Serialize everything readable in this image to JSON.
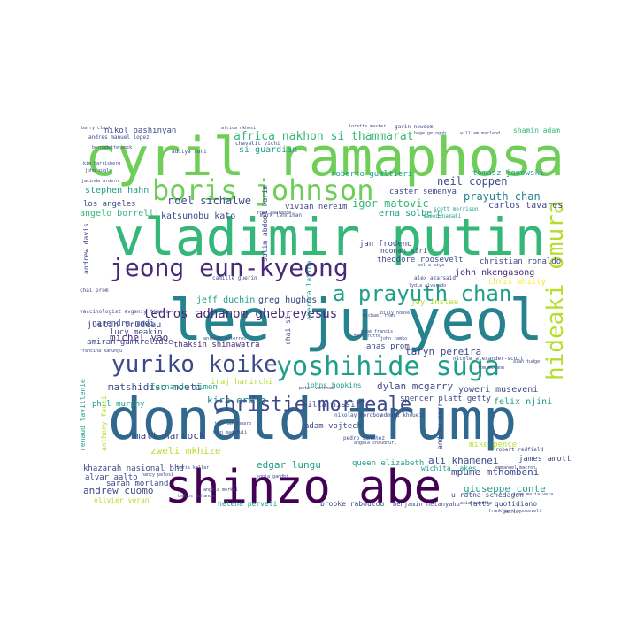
{
  "palette": {
    "dark_purple": "#440154",
    "purple": "#482878",
    "indigo": "#3e4989",
    "blue": "#31688e",
    "teal_blue": "#26828e",
    "teal": "#1f9e89",
    "green_teal": "#35b779",
    "green": "#6ece58",
    "yellow_green": "#b5de2b",
    "yellow": "#fde725"
  },
  "words": [
    {
      "text": "cyril ramaphosa",
      "weight": 100,
      "color": "green",
      "vertical": false
    },
    {
      "text": "vladimir putin",
      "weight": 96,
      "color": "green_teal",
      "vertical": false
    },
    {
      "text": "donald trump",
      "weight": 100,
      "color": "blue",
      "vertical": false
    },
    {
      "text": "lee ju yeol",
      "weight": 90,
      "color": "teal_blue",
      "vertical": false
    },
    {
      "text": "shinzo abe",
      "weight": 80,
      "color": "dark_purple",
      "vertical": false
    },
    {
      "text": "hideaki omura",
      "weight": 55,
      "color": "yellow_green",
      "vertical": true
    },
    {
      "text": "boris johnson",
      "weight": 55,
      "color": "green",
      "vertical": false
    },
    {
      "text": "jeong eun-kyeong",
      "weight": 50,
      "color": "purple",
      "vertical": false
    },
    {
      "text": "yoshihide suga",
      "weight": 50,
      "color": "teal",
      "vertical": false
    },
    {
      "text": "yuriko koike",
      "weight": 45,
      "color": "indigo",
      "vertical": false
    },
    {
      "text": "a prayuth chan",
      "weight": 40,
      "color": "teal",
      "vertical": false
    },
    {
      "text": "christie morreale",
      "weight": 38,
      "color": "indigo",
      "vertical": false
    },
    {
      "text": "tedros adhanom ghebreyesus",
      "weight": 25,
      "color": "purple",
      "vertical": false
    },
    {
      "text": "africa nakhon si thammarat",
      "weight": 22,
      "color": "green_teal",
      "vertical": false
    },
    {
      "text": "noel sichalwe",
      "weight": 20,
      "color": "indigo",
      "vertical": false
    },
    {
      "text": "igor matovic",
      "weight": 18,
      "color": "green_teal",
      "vertical": false
    },
    {
      "text": "neil coppen",
      "weight": 18,
      "color": "indigo",
      "vertical": false
    },
    {
      "text": "prayuth chan",
      "weight": 18,
      "color": "teal_blue",
      "vertical": false
    },
    {
      "text": "michel yao",
      "weight": 17,
      "color": "purple",
      "vertical": false
    },
    {
      "text": "matshidiso moeti",
      "weight": 17,
      "color": "indigo",
      "vertical": false
    },
    {
      "text": "kira erwin",
      "weight": 17,
      "color": "teal_blue",
      "vertical": false
    },
    {
      "text": "dylan mcgarry",
      "weight": 17,
      "color": "indigo",
      "vertical": false
    },
    {
      "text": "taryn pereira",
      "weight": 17,
      "color": "indigo",
      "vertical": false
    },
    {
      "text": "matt hancock",
      "weight": 17,
      "color": "indigo",
      "vertical": false
    },
    {
      "text": "ali khamenei",
      "weight": 17,
      "color": "indigo",
      "vertical": false
    },
    {
      "text": "andrew cuomo",
      "weight": 17,
      "color": "indigo",
      "vertical": false
    },
    {
      "text": "giuseppe conte",
      "weight": 16,
      "color": "teal",
      "vertical": false
    },
    {
      "text": "mpume mthombeni",
      "weight": 16,
      "color": "indigo",
      "vertical": false
    },
    {
      "text": "edgar lungu",
      "weight": 16,
      "color": "teal",
      "vertical": false
    },
    {
      "text": "zweli mkhize",
      "weight": 16,
      "color": "yellow_green",
      "vertical": false
    },
    {
      "text": "john nkengasong",
      "weight": 16,
      "color": "purple",
      "vertical": false
    },
    {
      "text": "justin trudeau",
      "weight": 15,
      "color": "indigo",
      "vertical": false
    },
    {
      "text": "amiran gamkrelidze",
      "weight": 15,
      "color": "indigo",
      "vertical": false
    },
    {
      "text": "thaksin shinawatra",
      "weight": 14,
      "color": "purple",
      "vertical": false
    },
    {
      "text": "jeff duchin",
      "weight": 14,
      "color": "teal",
      "vertical": false
    },
    {
      "text": "greg hughes",
      "weight": 14,
      "color": "indigo",
      "vertical": false
    },
    {
      "text": "yoweri museveni",
      "weight": 14,
      "color": "indigo",
      "vertical": false
    },
    {
      "text": "felix njini",
      "weight": 14,
      "color": "teal",
      "vertical": false
    },
    {
      "text": "spencer platt getty",
      "weight": 13,
      "color": "indigo",
      "vertical": false
    },
    {
      "text": "milla nissi",
      "weight": 13,
      "color": "indigo",
      "vertical": false
    },
    {
      "text": "adam vojtech",
      "weight": 13,
      "color": "indigo",
      "vertical": false
    },
    {
      "text": "james amott",
      "weight": 13,
      "color": "indigo",
      "vertical": false
    },
    {
      "text": "mike pence",
      "weight": 13,
      "color": "yellow_green",
      "vertical": false
    },
    {
      "text": "stephen hahn",
      "weight": 13,
      "color": "teal",
      "vertical": false
    },
    {
      "text": "angelo borrelli",
      "weight": 13,
      "color": "green_teal",
      "vertical": false
    },
    {
      "text": "los angeles",
      "weight": 13,
      "color": "indigo",
      "vertical": false
    },
    {
      "text": "carlos tavares",
      "weight": 13,
      "color": "indigo",
      "vertical": false
    },
    {
      "text": "erna solberg",
      "weight": 12,
      "color": "teal",
      "vertical": false
    },
    {
      "text": "caster semenya",
      "weight": 12,
      "color": "indigo",
      "vertical": false
    },
    {
      "text": "roberto gualtieri",
      "weight": 12,
      "color": "teal",
      "vertical": false
    },
    {
      "text": "tomasz janowski",
      "weight": 12,
      "color": "teal",
      "vertical": false
    },
    {
      "text": "christian ronaldo",
      "weight": 12,
      "color": "indigo",
      "vertical": false
    },
    {
      "text": "theodore roosevelt",
      "weight": 12,
      "color": "indigo",
      "vertical": false
    },
    {
      "text": "chris whitty",
      "weight": 12,
      "color": "yellow",
      "vertical": false
    },
    {
      "text": "jay inslee",
      "weight": 12,
      "color": "yellow_green",
      "vertical": false
    },
    {
      "text": "narendra modi",
      "weight": 12,
      "color": "indigo",
      "vertical": false
    },
    {
      "text": "lucy meakin",
      "weight": 12,
      "color": "indigo",
      "vertical": false
    },
    {
      "text": "phil murphy",
      "weight": 12,
      "color": "teal",
      "vertical": false
    },
    {
      "text": "fernando simon",
      "weight": 12,
      "color": "teal",
      "vertical": false
    },
    {
      "text": "iraj harirchi",
      "weight": 12,
      "color": "yellow_green",
      "vertical": false
    },
    {
      "text": "anas prom",
      "weight": 12,
      "color": "indigo",
      "vertical": false
    },
    {
      "text": "johns hopkins",
      "weight": 11,
      "color": "teal",
      "vertical": false
    },
    {
      "text": "queen elizabeth",
      "weight": 12,
      "color": "teal",
      "vertical": false
    },
    {
      "text": "khazanah nasional bhd",
      "weight": 12,
      "color": "indigo",
      "vertical": false
    },
    {
      "text": "sarah morland",
      "weight": 12,
      "color": "indigo",
      "vertical": false
    },
    {
      "text": "alvar aalto",
      "weight": 12,
      "color": "indigo",
      "vertical": false
    },
    {
      "text": "olivier veran",
      "weight": 11,
      "color": "yellow_green",
      "vertical": false
    },
    {
      "text": "helena perveli",
      "weight": 11,
      "color": "teal",
      "vertical": false
    },
    {
      "text": "brooke raboutou",
      "weight": 11,
      "color": "indigo",
      "vertical": false
    },
    {
      "text": "benjamin netanyahu",
      "weight": 11,
      "color": "indigo",
      "vertical": false
    },
    {
      "text": "fatto quotidiano",
      "weight": 11,
      "color": "indigo",
      "vertical": false
    },
    {
      "text": "u ratna schedagon",
      "weight": 11,
      "color": "indigo",
      "vertical": false
    },
    {
      "text": "wichita lakes",
      "weight": 11,
      "color": "teal",
      "vertical": false
    },
    {
      "text": "nikol pashinyan",
      "weight": 12,
      "color": "indigo",
      "vertical": false
    },
    {
      "text": "si guardian",
      "weight": 12,
      "color": "teal",
      "vertical": false
    },
    {
      "text": "vivian nereim",
      "weight": 11,
      "color": "indigo",
      "vertical": false
    },
    {
      "text": "jan frodeno",
      "weight": 11,
      "color": "indigo",
      "vertical": false
    },
    {
      "text": "shamin adam",
      "weight": 11,
      "color": "green_teal",
      "vertical": false
    },
    {
      "text": "katsunobu kato",
      "weight": 12,
      "color": "indigo",
      "vertical": false
    },
    {
      "text": "salim abdool karim",
      "weight": 11,
      "color": "indigo",
      "vertical": true
    },
    {
      "text": "andrew davis",
      "weight": 11,
      "color": "indigo",
      "vertical": true
    },
    {
      "text": "renaud lavillenie",
      "weight": 10,
      "color": "teal",
      "vertical": true
    },
    {
      "text": "anthony fauci",
      "weight": 10,
      "color": "yellow_green",
      "vertical": true
    },
    {
      "text": "andrew marr",
      "weight": 10,
      "color": "indigo",
      "vertical": true
    },
    {
      "text": "america latina",
      "weight": 10,
      "color": "teal",
      "vertical": true
    },
    {
      "text": "chai si",
      "weight": 10,
      "color": "indigo",
      "vertical": true
    },
    {
      "text": "noonan siri",
      "weight": 10,
      "color": "indigo",
      "vertical": false
    },
    {
      "text": "scott morrison",
      "weight": 8,
      "color": "teal",
      "vertical": false
    },
    {
      "text": "saeed namaki",
      "weight": 8,
      "color": "teal",
      "vertical": false
    },
    {
      "text": "aditya soni",
      "weight": 8,
      "color": "indigo",
      "vertical": false
    },
    {
      "text": "chavalit vichi",
      "weight": 8,
      "color": "indigo",
      "vertical": false
    },
    {
      "text": "andres manuel lopez",
      "weight": 8,
      "color": "indigo",
      "vertical": false
    },
    {
      "text": "gavin newsom",
      "weight": 8,
      "color": "indigo",
      "vertical": false
    },
    {
      "text": "robert redfield",
      "weight": 8,
      "color": "indigo",
      "vertical": false
    },
    {
      "text": "edmund khoueis",
      "weight": 8,
      "color": "indigo",
      "vertical": false
    },
    {
      "text": "pedro sanchez",
      "weight": 8,
      "color": "indigo",
      "vertical": false
    },
    {
      "text": "nikolay korobov",
      "weight": 8,
      "color": "indigo",
      "vertical": false
    },
    {
      "text": "mark lennihan",
      "weight": 8,
      "color": "indigo",
      "vertical": false
    },
    {
      "text": "vaccinologist evgeniy timako",
      "weight": 8,
      "color": "indigo",
      "vertical": false
    },
    {
      "text": "francina kahungu",
      "weight": 7,
      "color": "indigo",
      "vertical": false
    },
    {
      "text": "camille guerin",
      "weight": 8,
      "color": "indigo",
      "vertical": false
    },
    {
      "text": "alex azarsaid",
      "weight": 8,
      "color": "indigo",
      "vertical": false
    },
    {
      "text": "angela merkel",
      "weight": 7,
      "color": "indigo",
      "vertical": false
    },
    {
      "text": "nicole alexander-scott",
      "weight": 7,
      "color": "indigo",
      "vertical": false
    },
    {
      "text": "tom mccann",
      "weight": 7,
      "color": "indigo",
      "vertical": false
    },
    {
      "text": "emmanuel macron",
      "weight": 7,
      "color": "indigo",
      "vertical": false
    },
    {
      "text": "peter ventham",
      "weight": 7,
      "color": "indigo",
      "vertical": false
    },
    {
      "text": "chai prom",
      "weight": 7,
      "color": "indigo",
      "vertical": false
    },
    {
      "text": "antonio guterres",
      "weight": 7,
      "color": "indigo",
      "vertical": false
    },
    {
      "text": "fred lawrence",
      "weight": 7,
      "color": "indigo",
      "vertical": false
    },
    {
      "text": "pol a piya",
      "weight": 7,
      "color": "indigo",
      "vertical": false
    },
    {
      "text": "alan tudge",
      "weight": 7,
      "color": "indigo",
      "vertical": false
    },
    {
      "text": "john ramko",
      "weight": 7,
      "color": "indigo",
      "vertical": false
    },
    {
      "text": "jose maria vera",
      "weight": 7,
      "color": "indigo",
      "vertical": false
    },
    {
      "text": "asia pacific",
      "weight": 7,
      "color": "indigo",
      "vertical": false
    },
    {
      "text": "franklin d roosevelt",
      "weight": 7,
      "color": "indigo",
      "vertical": false
    },
    {
      "text": "bernadette bock",
      "weight": 7,
      "color": "indigo",
      "vertical": false
    },
    {
      "text": "hage geingob",
      "weight": 7,
      "color": "indigo",
      "vertical": false
    },
    {
      "text": "william macleod",
      "weight": 7,
      "color": "indigo",
      "vertical": false
    },
    {
      "text": "loretta mester",
      "weight": 7,
      "color": "indigo",
      "vertical": false
    },
    {
      "text": "pope francis",
      "weight": 7,
      "color": "indigo",
      "vertical": false
    },
    {
      "text": "mark rutte",
      "weight": 7,
      "color": "indigo",
      "vertical": false
    },
    {
      "text": "africa nkhosi",
      "weight": 7,
      "color": "indigo",
      "vertical": false
    },
    {
      "text": "jair bolsonaro",
      "weight": 7,
      "color": "indigo",
      "vertical": false
    },
    {
      "text": "john magufuli",
      "weight": 7,
      "color": "indigo",
      "vertical": false
    },
    {
      "text": "angela chaudhuri",
      "weight": 7,
      "color": "indigo",
      "vertical": false
    },
    {
      "text": "michael ryan",
      "weight": 7,
      "color": "indigo",
      "vertical": false
    },
    {
      "text": "nancy pelosi",
      "weight": 7,
      "color": "indigo",
      "vertical": false
    },
    {
      "text": "barry clark",
      "weight": 6,
      "color": "indigo",
      "vertical": false
    },
    {
      "text": "kim harrisberg",
      "weight": 6,
      "color": "indigo",
      "vertical": false
    },
    {
      "text": "john sugla",
      "weight": 6,
      "color": "indigo",
      "vertical": false
    },
    {
      "text": "jacinda ardern",
      "weight": 6,
      "color": "indigo",
      "vertical": false
    },
    {
      "text": "tedros adhanom",
      "weight": 6,
      "color": "indigo",
      "vertical": false
    },
    {
      "text": "sonia gandhi",
      "weight": 6,
      "color": "indigo",
      "vertical": false
    },
    {
      "text": "boris kollar",
      "weight": 6,
      "color": "indigo",
      "vertical": false
    },
    {
      "text": "lydia alvarado",
      "weight": 6,
      "color": "indigo",
      "vertical": false
    },
    {
      "text": "billy howse",
      "weight": 6,
      "color": "indigo",
      "vertical": false
    },
    {
      "text": "gabriel",
      "weight": 6,
      "color": "indigo",
      "vertical": false
    }
  ]
}
